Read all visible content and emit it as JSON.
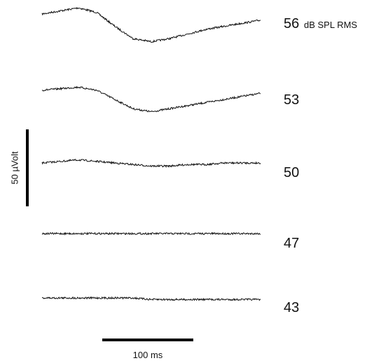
{
  "chart_data": {
    "type": "line",
    "x_unit": "ms",
    "y_unit": "µV",
    "ylabel": "50 µVolt",
    "x_scalebar": {
      "value": 100,
      "label": "100 ms"
    },
    "y_scalebar": {
      "value": 50,
      "label": "50 µVolt"
    },
    "unit_label": "dB SPL RMS",
    "series": [
      {
        "name": "56",
        "x": [
          0,
          20,
          40,
          60,
          80,
          100,
          120,
          140,
          160,
          180,
          200,
          220,
          240
        ],
        "y": [
          0,
          2,
          4,
          1,
          -8,
          -16,
          -18,
          -16,
          -13,
          -10,
          -8,
          -6,
          -4
        ]
      },
      {
        "name": "53",
        "x": [
          0,
          20,
          40,
          60,
          80,
          100,
          120,
          140,
          160,
          180,
          200,
          220,
          240
        ],
        "y": [
          0,
          1,
          2,
          0,
          -6,
          -12,
          -14,
          -12,
          -10,
          -8,
          -6,
          -4,
          -2
        ]
      },
      {
        "name": "50",
        "x": [
          0,
          20,
          40,
          60,
          80,
          100,
          120,
          140,
          160,
          180,
          200,
          220,
          240
        ],
        "y": [
          0,
          1,
          2,
          1,
          0,
          -1,
          -2,
          -2,
          -1,
          -1,
          0,
          0,
          0
        ]
      },
      {
        "name": "47",
        "x": [
          0,
          20,
          40,
          60,
          80,
          100,
          120,
          140,
          160,
          180,
          200,
          220,
          240
        ],
        "y": [
          0,
          0,
          0,
          0,
          0,
          0,
          0,
          0,
          0,
          0,
          0,
          0,
          0
        ]
      },
      {
        "name": "43",
        "x": [
          0,
          20,
          40,
          60,
          80,
          100,
          120,
          140,
          160,
          180,
          200,
          220,
          240
        ],
        "y": [
          0,
          0,
          0,
          0,
          0,
          0,
          -1,
          -1,
          -1,
          -1,
          -1,
          -1,
          -1
        ]
      }
    ],
    "grid": false,
    "colors": {
      "trace": "#111111",
      "scalebar": "#000000"
    }
  }
}
